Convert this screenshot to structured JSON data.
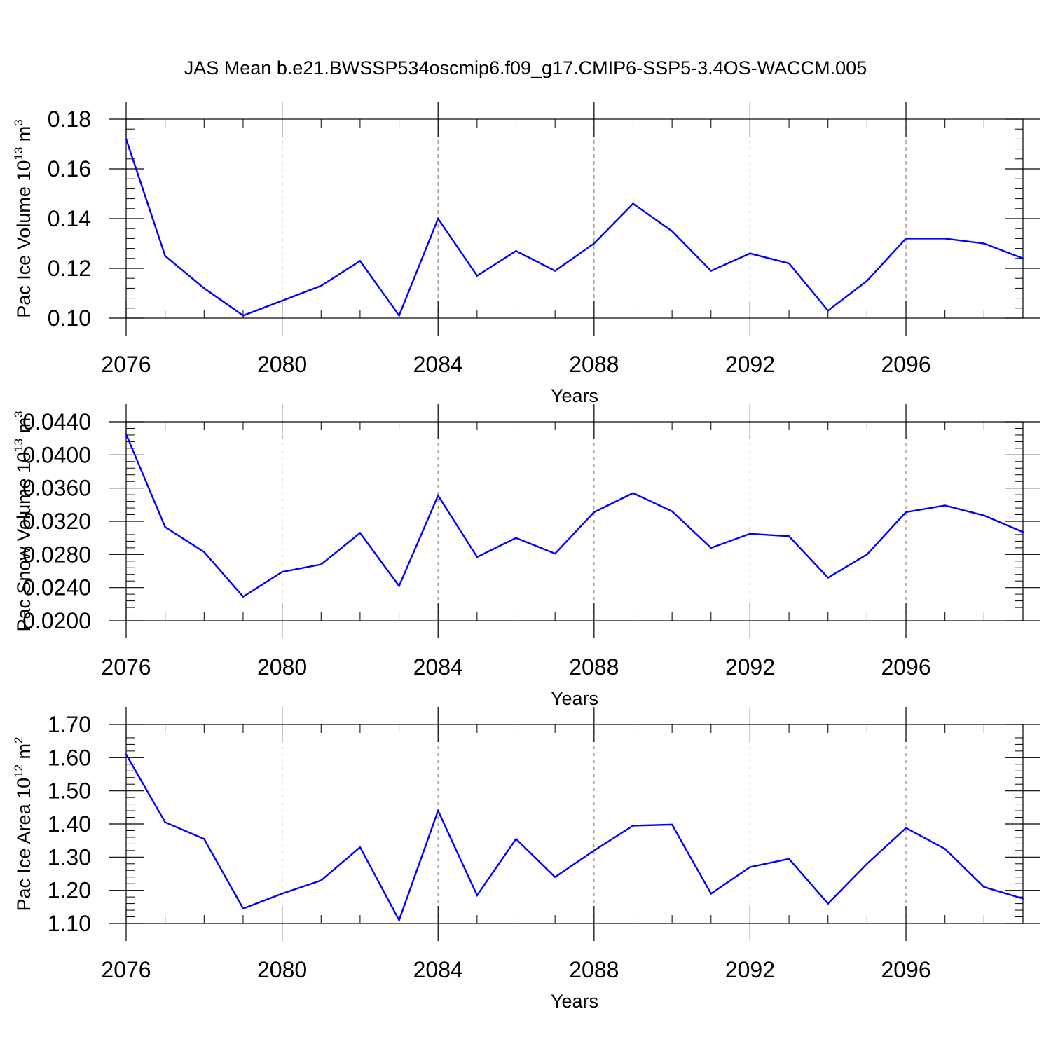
{
  "title": "JAS Mean b.e21.BWSSP534oscmip6.f09_g17.CMIP6-SSP5-3.4OS-WACCM.005",
  "colors": {
    "line": "#0000ff",
    "axis": "#000000",
    "grid": "#8c8c8c"
  },
  "chart_data": [
    {
      "type": "line",
      "ylabel": "Pac Ice Volume 10",
      "ylabel_exp": "13",
      "ylabel_unit": " m",
      "ylabel_unit_exp": "3",
      "xlabel": "Years",
      "xlim": [
        2076,
        2099
      ],
      "ylim": [
        0.1,
        0.18
      ],
      "yticks": [
        0.1,
        0.12,
        0.14,
        0.16,
        0.18
      ],
      "ytick_labels": [
        "0.10",
        "0.12",
        "0.14",
        "0.16",
        "0.18"
      ],
      "xticks": [
        2076,
        2080,
        2084,
        2088,
        2092,
        2096
      ],
      "xtick_labels": [
        "2076",
        "2080",
        "2084",
        "2088",
        "2092",
        "2096"
      ],
      "x": [
        2076,
        2077,
        2078,
        2079,
        2080,
        2081,
        2082,
        2083,
        2084,
        2085,
        2086,
        2087,
        2088,
        2089,
        2090,
        2091,
        2092,
        2093,
        2094,
        2095,
        2096,
        2097,
        2098,
        2099
      ],
      "values": [
        0.172,
        0.125,
        0.112,
        0.101,
        0.107,
        0.113,
        0.123,
        0.101,
        0.14,
        0.117,
        0.127,
        0.119,
        0.13,
        0.146,
        0.135,
        0.119,
        0.126,
        0.122,
        0.103,
        0.115,
        0.132,
        0.132,
        0.13,
        0.124
      ]
    },
    {
      "type": "line",
      "ylabel": "Pac Snow Volume 10",
      "ylabel_exp": "13",
      "ylabel_unit": " m",
      "ylabel_unit_exp": "3",
      "xlabel": "Years",
      "xlim": [
        2076,
        2099
      ],
      "ylim": [
        0.02,
        0.044
      ],
      "yticks": [
        0.02,
        0.024,
        0.028,
        0.032,
        0.036,
        0.04,
        0.044
      ],
      "ytick_labels": [
        "0.0200",
        "0.0240",
        "0.0280",
        "0.0320",
        "0.0360",
        "0.0400",
        "0.0440"
      ],
      "xticks": [
        2076,
        2080,
        2084,
        2088,
        2092,
        2096
      ],
      "xtick_labels": [
        "2076",
        "2080",
        "2084",
        "2088",
        "2092",
        "2096"
      ],
      "x": [
        2076,
        2077,
        2078,
        2079,
        2080,
        2081,
        2082,
        2083,
        2084,
        2085,
        2086,
        2087,
        2088,
        2089,
        2090,
        2091,
        2092,
        2093,
        2094,
        2095,
        2096,
        2097,
        2098,
        2099
      ],
      "values": [
        0.0425,
        0.0313,
        0.0283,
        0.0229,
        0.0259,
        0.0268,
        0.0306,
        0.0242,
        0.0351,
        0.0277,
        0.03,
        0.0281,
        0.0331,
        0.0354,
        0.0332,
        0.0288,
        0.0305,
        0.0302,
        0.0252,
        0.028,
        0.0331,
        0.0339,
        0.0327,
        0.0307
      ]
    },
    {
      "type": "line",
      "ylabel": "Pac Ice Area 10",
      "ylabel_exp": "12",
      "ylabel_unit": " m",
      "ylabel_unit_exp": "2",
      "xlabel": "Years",
      "xlim": [
        2076,
        2099
      ],
      "ylim": [
        1.1,
        1.7
      ],
      "yticks": [
        1.1,
        1.2,
        1.3,
        1.4,
        1.5,
        1.6,
        1.7
      ],
      "ytick_labels": [
        "1.10",
        "1.20",
        "1.30",
        "1.40",
        "1.50",
        "1.60",
        "1.70"
      ],
      "xticks": [
        2076,
        2080,
        2084,
        2088,
        2092,
        2096
      ],
      "xtick_labels": [
        "2076",
        "2080",
        "2084",
        "2088",
        "2092",
        "2096"
      ],
      "x": [
        2076,
        2077,
        2078,
        2079,
        2080,
        2081,
        2082,
        2083,
        2084,
        2085,
        2086,
        2087,
        2088,
        2089,
        2090,
        2091,
        2092,
        2093,
        2094,
        2095,
        2096,
        2097,
        2098,
        2099
      ],
      "values": [
        1.61,
        1.405,
        1.355,
        1.145,
        1.19,
        1.23,
        1.33,
        1.11,
        1.44,
        1.185,
        1.355,
        1.24,
        1.32,
        1.395,
        1.398,
        1.19,
        1.27,
        1.295,
        1.16,
        1.28,
        1.388,
        1.325,
        1.21,
        1.175
      ]
    }
  ]
}
